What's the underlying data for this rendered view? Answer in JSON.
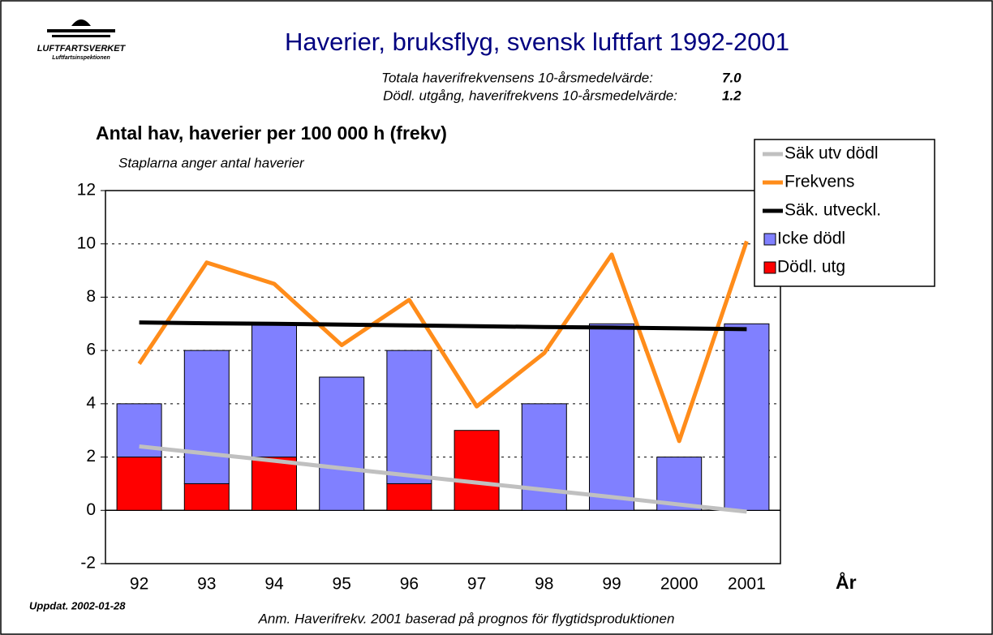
{
  "chart_data": {
    "type": "combo",
    "logo": {
      "name": "LUFTFARTSVERKET",
      "sub": "Luftfartsinspektionen"
    },
    "title": "Haverier, bruksflyg, svensk luftfart 1992-2001",
    "notes": [
      {
        "label": "Totala haverifrekvensens  10-årsmedelvärde:",
        "value": "7.0"
      },
      {
        "label": "Dödl. utgång, haverifrekvens  10-årsmedelvärde:",
        "value": "1.2"
      }
    ],
    "y_label": "Antal hav, haverier per 100 000 h (frekv)",
    "subtitle": "Staplarna anger antal haverier",
    "x_label": "År",
    "updated": "Uppdat. 2002-01-28",
    "footnote": "Anm. Haverifrekv. 2001 baserad på prognos för flygtidsproduktionen",
    "categories": [
      "92",
      "93",
      "94",
      "95",
      "96",
      "97",
      "98",
      "99",
      "2000",
      "2001"
    ],
    "ylim": [
      -2,
      12
    ],
    "yticks": [
      -2,
      0,
      2,
      4,
      6,
      8,
      10,
      12
    ],
    "grid": true,
    "legend": "upper right",
    "series": [
      {
        "name": "Säk utv dödl",
        "type": "line",
        "color": "#c0c0c0",
        "values": [
          2.4,
          2.13,
          1.86,
          1.58,
          1.31,
          1.04,
          0.77,
          0.5,
          0.22,
          -0.05
        ]
      },
      {
        "name": "Frekvens",
        "type": "line",
        "color": "#ff8c1a",
        "values": [
          5.5,
          9.3,
          8.5,
          6.2,
          7.9,
          3.9,
          5.9,
          9.6,
          2.6,
          10.1
        ]
      },
      {
        "name": "Säk. utveckl.",
        "type": "line",
        "color": "#000000",
        "values": [
          7.05,
          7.02,
          7.0,
          6.97,
          6.94,
          6.91,
          6.88,
          6.86,
          6.83,
          6.8
        ]
      },
      {
        "name": "Icke dödl",
        "type": "bar",
        "color": "#8080ff",
        "values": [
          2,
          5,
          5,
          5,
          5,
          0,
          4,
          7,
          2,
          7
        ]
      },
      {
        "name": "Dödl. utg",
        "type": "bar",
        "color": "#ff0000",
        "values": [
          2,
          1,
          2,
          0,
          1,
          3,
          0,
          0,
          0,
          0
        ]
      }
    ]
  }
}
